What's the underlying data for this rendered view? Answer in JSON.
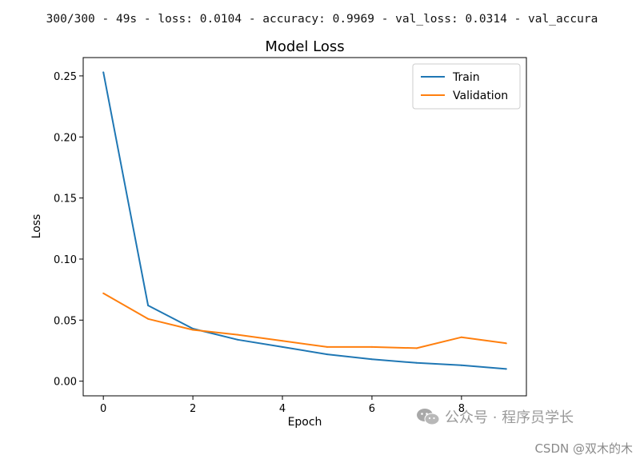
{
  "header": {
    "log_line": "300/300 - 49s - loss: 0.0104 - accuracy: 0.9969 - val_loss: 0.0314 - val_accura"
  },
  "chart_data": {
    "type": "line",
    "title": "Model Loss",
    "xlabel": "Epoch",
    "ylabel": "Loss",
    "x": [
      0,
      1,
      2,
      3,
      4,
      5,
      6,
      7,
      8,
      9
    ],
    "xlim": [
      -0.45,
      9.45
    ],
    "ylim": [
      -0.012,
      0.265
    ],
    "xticks": [
      0,
      2,
      4,
      6,
      8
    ],
    "yticks": [
      0.0,
      0.05,
      0.1,
      0.15,
      0.2,
      0.25
    ],
    "ytick_labels": [
      "0.00",
      "0.05",
      "0.10",
      "0.15",
      "0.20",
      "0.25"
    ],
    "grid": false,
    "legend_position": "top-right",
    "series": [
      {
        "name": "Train",
        "color": "#1f77b4",
        "values": [
          0.253,
          0.062,
          0.043,
          0.034,
          0.028,
          0.022,
          0.018,
          0.015,
          0.013,
          0.01
        ]
      },
      {
        "name": "Validation",
        "color": "#ff7f0e",
        "values": [
          0.072,
          0.051,
          0.042,
          0.038,
          0.033,
          0.028,
          0.028,
          0.027,
          0.036,
          0.031
        ]
      }
    ]
  },
  "watermarks": {
    "wechat_text": "公众号 · 程序员学长",
    "csdn_text": "CSDN @双木的木",
    "wechat_icon": "wechat-icon"
  }
}
